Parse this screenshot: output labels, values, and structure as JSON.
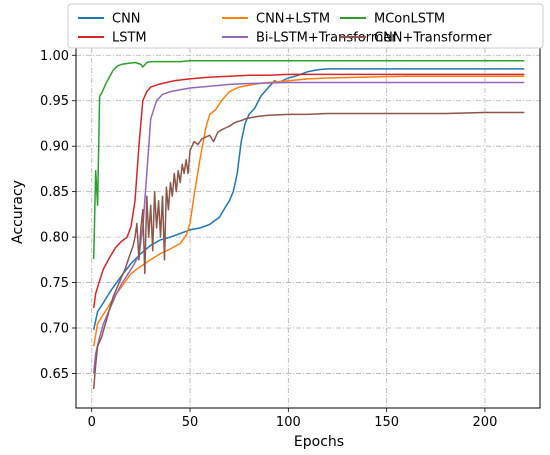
{
  "chart_data": {
    "type": "line",
    "xlabel": "Epochs",
    "ylabel": "Accuracy",
    "xlim": [
      -8,
      228
    ],
    "ylim": [
      0.612,
      1.008
    ],
    "xticks": [
      0,
      50,
      100,
      150,
      200
    ],
    "yticks": [
      0.65,
      0.7,
      0.75,
      0.8,
      0.85,
      0.9,
      0.95,
      1.0
    ],
    "grid": true,
    "legend": {
      "placement": "top-center",
      "columns": 3
    },
    "series": [
      {
        "name": "CNN",
        "color": "#1f77b4",
        "x": [
          1,
          3,
          6,
          10,
          15,
          20,
          25,
          30,
          35,
          40,
          45,
          50,
          55,
          60,
          65,
          68,
          70,
          72,
          74,
          76,
          78,
          80,
          83,
          86,
          90,
          93,
          95,
          100,
          105,
          110,
          115,
          120,
          130,
          150,
          180,
          200,
          220
        ],
        "y": [
          0.698,
          0.718,
          0.728,
          0.742,
          0.757,
          0.771,
          0.782,
          0.791,
          0.797,
          0.8,
          0.804,
          0.808,
          0.81,
          0.814,
          0.822,
          0.833,
          0.84,
          0.85,
          0.87,
          0.905,
          0.925,
          0.935,
          0.942,
          0.955,
          0.965,
          0.972,
          0.97,
          0.975,
          0.978,
          0.982,
          0.984,
          0.985,
          0.985,
          0.985,
          0.985,
          0.985,
          0.985
        ]
      },
      {
        "name": "CNN+LSTM",
        "color": "#ff7f0e",
        "x": [
          1,
          3,
          5,
          8,
          12,
          16,
          20,
          25,
          30,
          35,
          40,
          45,
          48,
          50,
          52,
          55,
          58,
          60,
          63,
          66,
          70,
          75,
          80,
          85,
          90,
          100,
          110,
          120,
          140,
          160,
          180,
          200,
          220
        ],
        "y": [
          0.68,
          0.705,
          0.712,
          0.722,
          0.736,
          0.748,
          0.76,
          0.768,
          0.775,
          0.782,
          0.787,
          0.793,
          0.802,
          0.815,
          0.845,
          0.885,
          0.92,
          0.935,
          0.94,
          0.95,
          0.96,
          0.965,
          0.967,
          0.969,
          0.97,
          0.972,
          0.974,
          0.975,
          0.976,
          0.977,
          0.977,
          0.977,
          0.977
        ]
      },
      {
        "name": "MConLSTM",
        "color": "#2ca02c",
        "x": [
          1,
          2,
          3,
          4,
          5,
          7,
          9,
          11,
          13,
          15,
          18,
          22,
          25,
          26,
          28,
          30,
          35,
          40,
          45,
          50,
          60,
          80,
          100,
          120,
          150,
          180,
          200,
          220
        ],
        "y": [
          0.776,
          0.873,
          0.835,
          0.955,
          0.958,
          0.968,
          0.976,
          0.984,
          0.988,
          0.99,
          0.991,
          0.992,
          0.99,
          0.987,
          0.992,
          0.993,
          0.993,
          0.993,
          0.993,
          0.994,
          0.994,
          0.994,
          0.994,
          0.994,
          0.994,
          0.994,
          0.994,
          0.994
        ]
      },
      {
        "name": "LSTM",
        "color": "#d62728",
        "x": [
          1,
          2,
          4,
          6,
          9,
          12,
          15,
          18,
          20,
          22,
          24,
          26,
          28,
          30,
          34,
          38,
          42,
          46,
          50,
          60,
          70,
          80,
          90,
          100,
          120,
          150,
          180,
          200,
          220
        ],
        "y": [
          0.722,
          0.738,
          0.752,
          0.765,
          0.777,
          0.788,
          0.795,
          0.8,
          0.812,
          0.84,
          0.9,
          0.95,
          0.96,
          0.965,
          0.968,
          0.97,
          0.972,
          0.973,
          0.974,
          0.976,
          0.977,
          0.978,
          0.978,
          0.979,
          0.979,
          0.979,
          0.979,
          0.979,
          0.979
        ]
      },
      {
        "name": "Bi-LSTM+Transformer",
        "color": "#9467bd",
        "x": [
          1,
          2,
          4,
          6,
          9,
          12,
          15,
          18,
          21,
          24,
          26,
          28,
          30,
          33,
          36,
          40,
          45,
          50,
          60,
          70,
          80,
          100,
          120,
          150,
          180,
          200,
          220
        ],
        "y": [
          0.65,
          0.672,
          0.69,
          0.705,
          0.72,
          0.735,
          0.748,
          0.758,
          0.768,
          0.78,
          0.81,
          0.87,
          0.93,
          0.95,
          0.957,
          0.96,
          0.962,
          0.964,
          0.966,
          0.968,
          0.969,
          0.97,
          0.97,
          0.97,
          0.97,
          0.97,
          0.97
        ]
      },
      {
        "name": "CNN+Transformer",
        "color": "#8c564b",
        "x": [
          1,
          2,
          3,
          5,
          7,
          9,
          11,
          13,
          15,
          17,
          19,
          21,
          22,
          23,
          24,
          25,
          26,
          27,
          28,
          29,
          30,
          31,
          32,
          33,
          34,
          35,
          36,
          37,
          38,
          39,
          40,
          41,
          42,
          43,
          44,
          45,
          46,
          47,
          48,
          49,
          50,
          52,
          54,
          56,
          58,
          60,
          62,
          64,
          66,
          68,
          70,
          72,
          74,
          76,
          78,
          80,
          85,
          90,
          100,
          110,
          120,
          140,
          160,
          180,
          200,
          220
        ],
        "y": [
          0.633,
          0.66,
          0.68,
          0.69,
          0.705,
          0.72,
          0.735,
          0.745,
          0.755,
          0.765,
          0.778,
          0.79,
          0.8,
          0.815,
          0.775,
          0.81,
          0.83,
          0.76,
          0.845,
          0.8,
          0.835,
          0.785,
          0.85,
          0.81,
          0.84,
          0.8,
          0.845,
          0.775,
          0.855,
          0.83,
          0.86,
          0.845,
          0.87,
          0.85,
          0.873,
          0.86,
          0.88,
          0.87,
          0.885,
          0.87,
          0.895,
          0.905,
          0.902,
          0.908,
          0.91,
          0.912,
          0.905,
          0.915,
          0.918,
          0.92,
          0.922,
          0.925,
          0.927,
          0.928,
          0.93,
          0.931,
          0.933,
          0.934,
          0.935,
          0.935,
          0.936,
          0.936,
          0.936,
          0.936,
          0.937,
          0.937
        ]
      }
    ]
  }
}
